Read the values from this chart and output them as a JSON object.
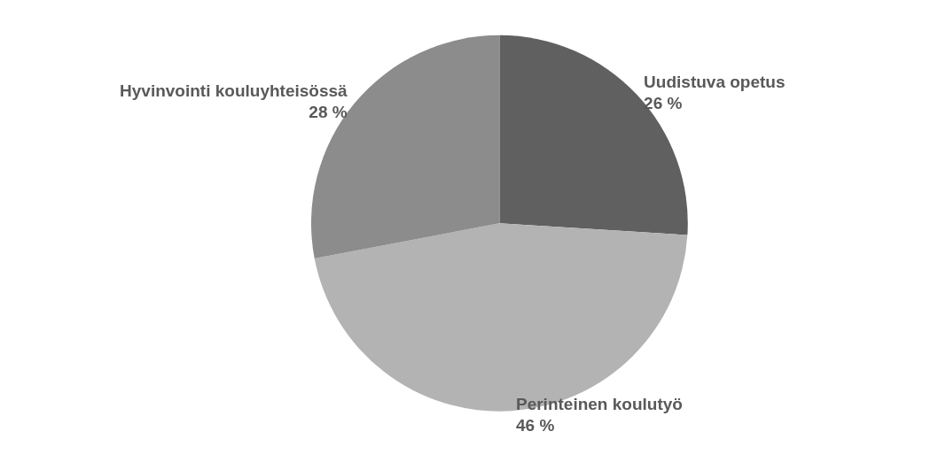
{
  "chart_data": {
    "type": "pie",
    "categories": [
      "Uudistuva opetus",
      "Perinteinen koulutyö",
      "Hyvinvointi kouluyhteisössä"
    ],
    "values": [
      26,
      46,
      28
    ],
    "value_labels": [
      "26 %",
      "46 %",
      "28 %"
    ],
    "colors": [
      "#606060",
      "#b3b3b3",
      "#8c8c8c"
    ],
    "legend": false
  }
}
